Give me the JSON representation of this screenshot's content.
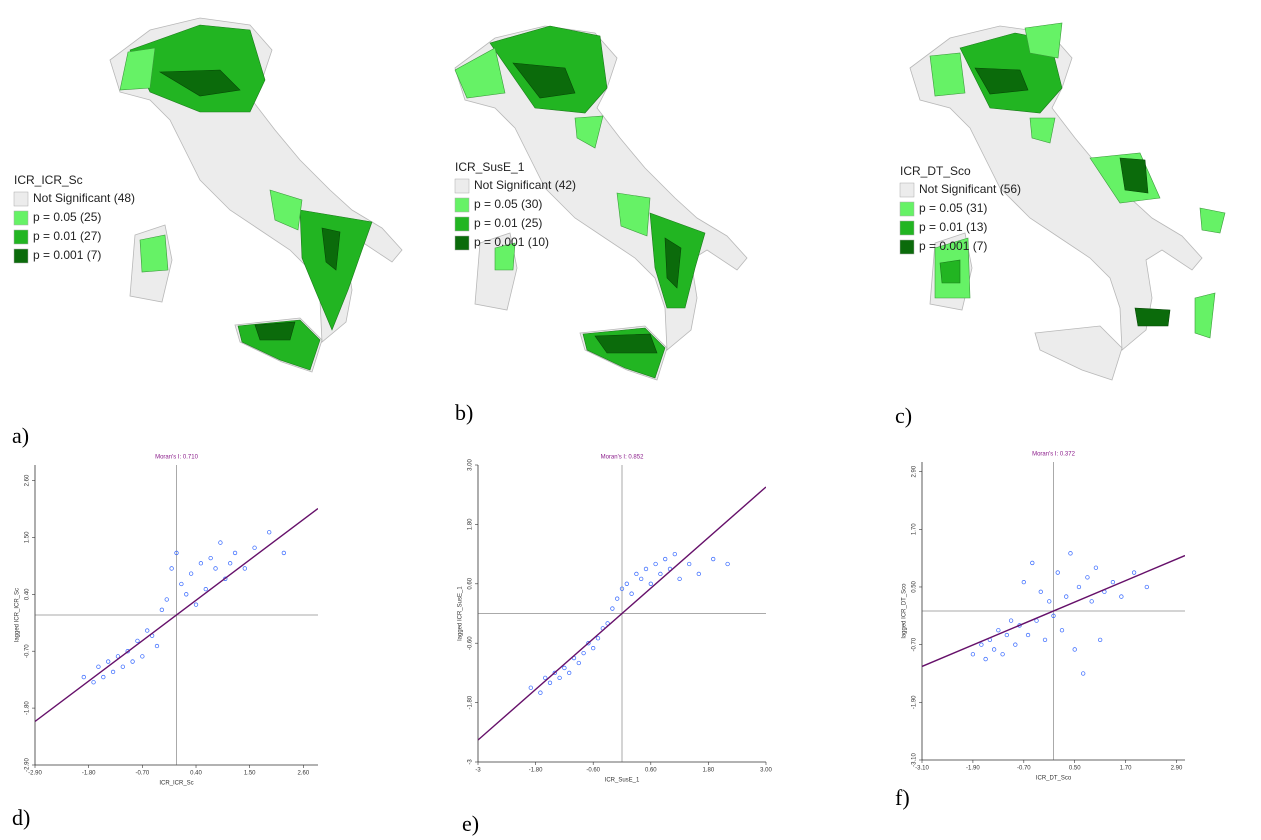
{
  "panel_labels": [
    "a)",
    "b)",
    "c)",
    "d)",
    "e)",
    "f)"
  ],
  "maps": [
    {
      "legend_title": "ICR_ICR_Sc",
      "legend": [
        {
          "label": "Not Significant (48)",
          "color": "#ececec"
        },
        {
          "label": "p = 0.05 (25)",
          "color": "#66f266"
        },
        {
          "label": "p = 0.01 (27)",
          "color": "#22b522"
        },
        {
          "label": "p = 0.001 (7)",
          "color": "#0b6b0b"
        }
      ]
    },
    {
      "legend_title": "ICR_SusE_1",
      "legend": [
        {
          "label": "Not Significant (42)",
          "color": "#ececec"
        },
        {
          "label": "p = 0.05 (30)",
          "color": "#66f266"
        },
        {
          "label": "p = 0.01 (25)",
          "color": "#22b522"
        },
        {
          "label": "p = 0.001 (10)",
          "color": "#0b6b0b"
        }
      ]
    },
    {
      "legend_title": "ICR_DT_Sco",
      "legend": [
        {
          "label": "Not Significant (56)",
          "color": "#ececec"
        },
        {
          "label": "p = 0.05 (31)",
          "color": "#66f266"
        },
        {
          "label": "p = 0.01 (13)",
          "color": "#22b522"
        },
        {
          "label": "p = 0.001 (7)",
          "color": "#0b6b0b"
        }
      ]
    }
  ],
  "chart_data": [
    {
      "type": "scatter",
      "title": "Moran's I: 0.710",
      "moran_i": 0.71,
      "x_label": "ICR_ICR_Sc",
      "y_label": "lagged ICR_ICR_Sc",
      "xlim": [
        -2.9,
        2.9
      ],
      "ylim": [
        -2.9,
        2.9
      ],
      "xticks": [
        {
          "value": -2.9,
          "label": "-2.90"
        },
        {
          "value": -1.8,
          "label": "-1.80"
        },
        {
          "value": -0.7,
          "label": "-0.70"
        },
        {
          "value": 0.4,
          "label": "0.40"
        },
        {
          "value": 1.5,
          "label": "1.50"
        },
        {
          "value": 2.6,
          "label": "2.60"
        }
      ],
      "yticks": [
        {
          "value": -2.9,
          "label": "-2.90"
        },
        {
          "value": -1.8,
          "label": "-1.80"
        },
        {
          "value": -0.7,
          "label": "-0.70"
        },
        {
          "value": 0.4,
          "label": "0.40"
        },
        {
          "value": 1.5,
          "label": "1.50"
        },
        {
          "value": 2.6,
          "label": "2.60"
        }
      ],
      "color": "#3366ff",
      "line_color": "#66106a",
      "x": [
        -1.9,
        -1.7,
        -1.6,
        -1.5,
        -1.4,
        -1.3,
        -1.2,
        -1.1,
        -1.0,
        -0.9,
        -0.8,
        -0.7,
        -0.6,
        -0.5,
        -0.4,
        -0.3,
        -0.2,
        -0.1,
        0.0,
        0.1,
        0.2,
        0.3,
        0.4,
        0.5,
        0.6,
        0.7,
        0.8,
        0.9,
        1.0,
        1.1,
        1.2,
        1.4,
        1.6,
        1.9,
        2.2
      ],
      "values": [
        -1.2,
        -1.3,
        -1.0,
        -1.2,
        -0.9,
        -1.1,
        -0.8,
        -1.0,
        -0.7,
        -0.9,
        -0.5,
        -0.8,
        -0.3,
        -0.4,
        -0.6,
        0.1,
        0.3,
        0.9,
        1.2,
        0.6,
        0.4,
        0.8,
        0.2,
        1.0,
        0.5,
        1.1,
        0.9,
        1.4,
        0.7,
        1.0,
        1.2,
        0.9,
        1.3,
        1.6,
        1.2
      ]
    },
    {
      "type": "scatter",
      "title": "Moran's I: 0.852",
      "moran_i": 0.852,
      "x_label": "ICR_SusE_1",
      "y_label": "lagged ICR_SusE_1",
      "xlim": [
        -3,
        3
      ],
      "ylim": [
        -3,
        3
      ],
      "xticks": [
        -3,
        {
          "value": -1.8,
          "label": "-1.80"
        },
        {
          "value": -0.6,
          "label": "-0.60"
        },
        {
          "value": 0.6,
          "label": "0.60"
        },
        {
          "value": 1.8,
          "label": "1.80"
        },
        {
          "value": 3,
          "label": "3.00"
        }
      ],
      "yticks": [
        -3,
        {
          "value": -1.8,
          "label": "-1.80"
        },
        {
          "value": -0.6,
          "label": "-0.60"
        },
        {
          "value": 0.6,
          "label": "0.60"
        },
        {
          "value": 1.8,
          "label": "1.80"
        },
        {
          "value": 3,
          "label": "3.00"
        }
      ],
      "color": "#3366ff",
      "line_color": "#66106a",
      "x": [
        -1.9,
        -1.7,
        -1.6,
        -1.5,
        -1.4,
        -1.3,
        -1.2,
        -1.1,
        -1.0,
        -0.9,
        -0.8,
        -0.7,
        -0.6,
        -0.5,
        -0.4,
        -0.3,
        -0.2,
        -0.1,
        0.0,
        0.1,
        0.2,
        0.3,
        0.4,
        0.5,
        0.6,
        0.7,
        0.8,
        0.9,
        1.0,
        1.1,
        1.2,
        1.4,
        1.6,
        1.9,
        2.2
      ],
      "values": [
        -1.5,
        -1.6,
        -1.3,
        -1.4,
        -1.2,
        -1.3,
        -1.1,
        -1.2,
        -0.9,
        -1.0,
        -0.8,
        -0.6,
        -0.7,
        -0.5,
        -0.3,
        -0.2,
        0.1,
        0.3,
        0.5,
        0.6,
        0.4,
        0.8,
        0.7,
        0.9,
        0.6,
        1.0,
        0.8,
        1.1,
        0.9,
        1.2,
        0.7,
        1.0,
        0.8,
        1.1,
        1.0
      ]
    },
    {
      "type": "scatter",
      "title": "Moran's I: 0.372",
      "moran_i": 0.372,
      "x_label": "ICR_DT_Sco",
      "y_label": "lagged ICR_DT_Sco",
      "xlim": [
        -3.1,
        3.1
      ],
      "ylim": [
        -3.1,
        3.1
      ],
      "xticks": [
        {
          "value": -3.1,
          "label": "-3.10"
        },
        {
          "value": -1.9,
          "label": "-1.90"
        },
        {
          "value": -0.7,
          "label": "-0.70"
        },
        {
          "value": 0.5,
          "label": "0.50"
        },
        {
          "value": 1.7,
          "label": "1.70"
        },
        {
          "value": 2.9,
          "label": "2.90"
        }
      ],
      "yticks": [
        {
          "value": -3.1,
          "label": "-3.10"
        },
        {
          "value": -1.9,
          "label": "-1.90"
        },
        {
          "value": -0.7,
          "label": "-0.70"
        },
        {
          "value": 0.5,
          "label": "0.50"
        },
        {
          "value": 1.7,
          "label": "1.70"
        },
        {
          "value": 2.9,
          "label": "2.90"
        }
      ],
      "color": "#3366ff",
      "line_color": "#66106a",
      "x": [
        -1.9,
        -1.7,
        -1.6,
        -1.5,
        -1.4,
        -1.3,
        -1.2,
        -1.1,
        -1.0,
        -0.9,
        -0.8,
        -0.7,
        -0.6,
        -0.5,
        -0.4,
        -0.3,
        -0.2,
        -0.1,
        0.0,
        0.1,
        0.2,
        0.3,
        0.4,
        0.5,
        0.6,
        0.7,
        0.8,
        0.9,
        1.0,
        1.1,
        1.2,
        1.4,
        1.6,
        1.9,
        2.2
      ],
      "values": [
        -0.9,
        -0.7,
        -1.0,
        -0.6,
        -0.8,
        -0.4,
        -0.9,
        -0.5,
        -0.2,
        -0.7,
        -0.3,
        0.6,
        -0.5,
        1.0,
        -0.2,
        0.4,
        -0.6,
        0.2,
        -0.1,
        0.8,
        -0.4,
        0.3,
        1.2,
        -0.8,
        0.5,
        -1.3,
        0.7,
        0.2,
        0.9,
        -0.6,
        0.4,
        0.6,
        0.3,
        0.8,
        0.5
      ]
    }
  ]
}
